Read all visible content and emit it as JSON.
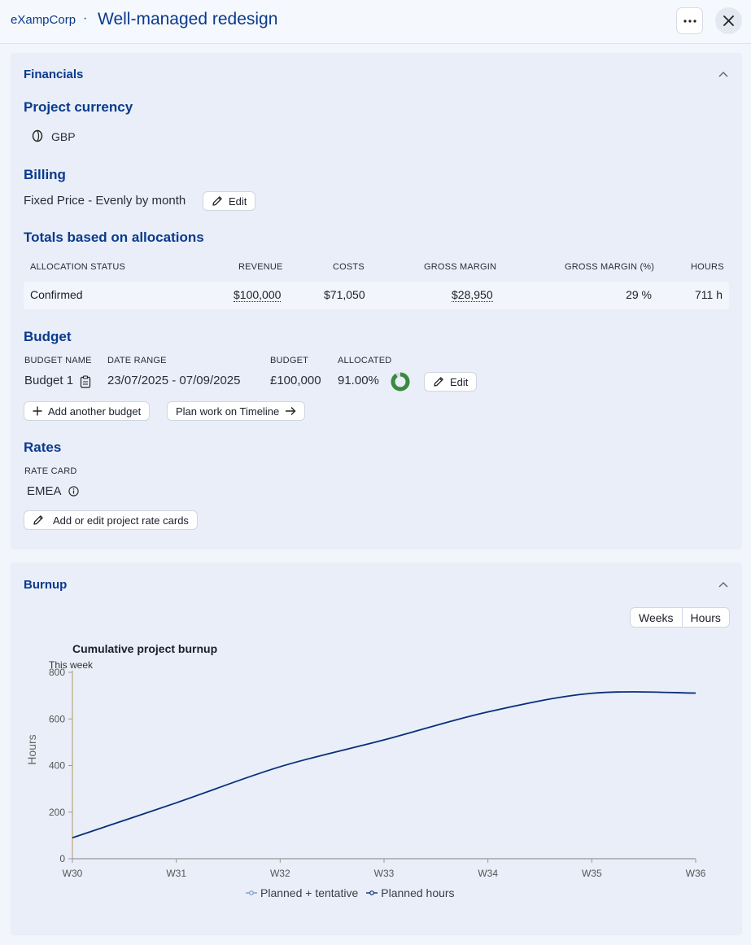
{
  "header": {
    "org": "eXampCorp",
    "separator": "·",
    "title": "Well-managed redesign",
    "more_icon": "ellipsis-icon",
    "close_icon": "close-icon"
  },
  "financials": {
    "title": "Financials",
    "currency_heading": "Project currency",
    "currency": "GBP",
    "billing_heading": "Billing",
    "billing_value": "Fixed Price - Evenly by month",
    "edit_label": "Edit",
    "totals_heading": "Totals based on allocations",
    "columns": [
      "ALLOCATION STATUS",
      "REVENUE",
      "COSTS",
      "GROSS MARGIN",
      "GROSS MARGIN (%)",
      "HOURS"
    ],
    "row": {
      "status": "Confirmed",
      "revenue": "$100,000",
      "costs": "$71,050",
      "gross_margin": "$28,950",
      "gross_margin_pct": "29 %",
      "hours": "711 h"
    },
    "budget_heading": "Budget",
    "budget_columns": [
      "BUDGET NAME",
      "DATE RANGE",
      "BUDGET",
      "ALLOCATED"
    ],
    "budget": {
      "name": "Budget 1",
      "date_range": "23/07/2025 - 07/09/2025",
      "amount": "£100,000",
      "allocated": "91.00%",
      "allocated_fraction": 0.91,
      "ring_color": "#3a8a3e"
    },
    "budget_edit_label": "Edit",
    "add_budget_label": "Add another budget",
    "plan_timeline_label": "Plan work on Timeline",
    "rates_heading": "Rates",
    "rate_card_label": "RATE CARD",
    "rate_card_value": "EMEA",
    "edit_rate_cards_label": "Add or edit project rate cards"
  },
  "burnup": {
    "title": "Burnup",
    "toggle": [
      "Weeks",
      "Hours"
    ],
    "chart_title": "Cumulative project burnup",
    "marker_label": "This week"
  },
  "chart_data": {
    "type": "line",
    "title": "Cumulative project burnup",
    "xlabel": "",
    "ylabel": "Hours",
    "x": [
      "W30",
      "W31",
      "W32",
      "W33",
      "W34",
      "W35",
      "W36"
    ],
    "yticks": [
      0,
      200,
      400,
      600,
      800
    ],
    "ylim": [
      0,
      800
    ],
    "series": [
      {
        "name": "Planned + tentative",
        "color": "#7a9ad0",
        "values": [
          90,
          240,
          395,
          510,
          630,
          710,
          711
        ]
      },
      {
        "name": "Planned hours",
        "color": "#0a2f7a",
        "values": [
          90,
          240,
          395,
          510,
          630,
          710,
          711
        ]
      }
    ],
    "annotations": [
      {
        "label": "This week",
        "x": "W30"
      }
    ],
    "legend": "bottom-center",
    "grid": false
  }
}
